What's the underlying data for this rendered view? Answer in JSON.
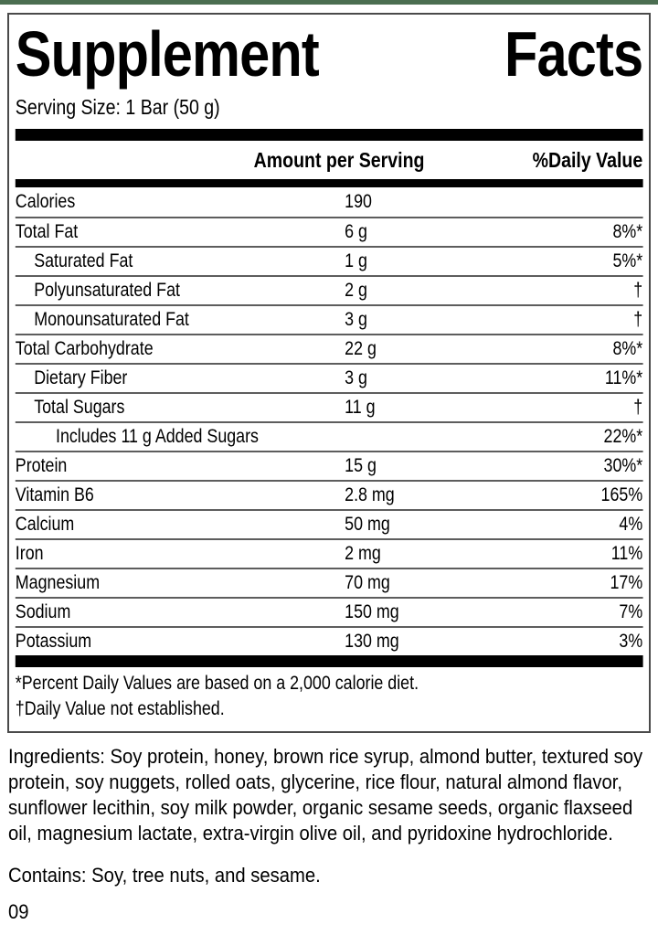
{
  "accent_color": "#4b6e51",
  "label": {
    "title_words": [
      "Supplement",
      "Facts"
    ],
    "serving_size": "Serving Size: 1 Bar (50 g)",
    "columns": {
      "amount": "Amount per Serving",
      "dv": "%Daily Value"
    },
    "rows": [
      {
        "name": "Calories",
        "indent": 0,
        "amount": "190",
        "dv": ""
      },
      {
        "name": "Total Fat",
        "indent": 0,
        "amount": "6 g",
        "dv": "8%*"
      },
      {
        "name": "Saturated Fat",
        "indent": 1,
        "amount": "1 g",
        "dv": "5%*"
      },
      {
        "name": "Polyunsaturated Fat",
        "indent": 1,
        "amount": "2 g",
        "dv": "†"
      },
      {
        "name": "Monounsaturated Fat",
        "indent": 1,
        "amount": "3 g",
        "dv": "†"
      },
      {
        "name": "Total Carbohydrate",
        "indent": 0,
        "amount": "22 g",
        "dv": "8%*"
      },
      {
        "name": "Dietary Fiber",
        "indent": 1,
        "amount": "3 g",
        "dv": "11%*"
      },
      {
        "name": "Total Sugars",
        "indent": 1,
        "amount": "11 g",
        "dv": "†"
      },
      {
        "name": "Includes 11 g Added Sugars",
        "indent": 2,
        "amount": "",
        "dv": "22%*"
      },
      {
        "name": "Protein",
        "indent": 0,
        "amount": "15 g",
        "dv": "30%*"
      },
      {
        "name": "Vitamin B6",
        "indent": 0,
        "amount": "2.8 mg",
        "dv": "165%"
      },
      {
        "name": "Calcium",
        "indent": 0,
        "amount": "50 mg",
        "dv": "4%"
      },
      {
        "name": "Iron",
        "indent": 0,
        "amount": "2 mg",
        "dv": "11%"
      },
      {
        "name": "Magnesium",
        "indent": 0,
        "amount": "70 mg",
        "dv": "17%"
      },
      {
        "name": "Sodium",
        "indent": 0,
        "amount": "150 mg",
        "dv": "7%"
      },
      {
        "name": "Potassium",
        "indent": 0,
        "amount": "130 mg",
        "dv": "3%"
      }
    ],
    "footnotes": [
      "*Percent Daily Values are based on a 2,000 calorie diet.",
      "†Daily Value not established."
    ]
  },
  "ingredients": "Ingredients: Soy protein, honey, brown rice syrup, almond butter, textured soy protein, soy nuggets, rolled oats, glycerine, rice flour, natural almond flavor, sunflower lecithin, soy milk powder, organic sesame seeds, organic flaxseed oil, magnesium lactate, extra-virgin olive oil, and pyridoxine hydrochloride.",
  "contains": "Contains: Soy, tree nuts, and sesame.",
  "footer_code": "09"
}
